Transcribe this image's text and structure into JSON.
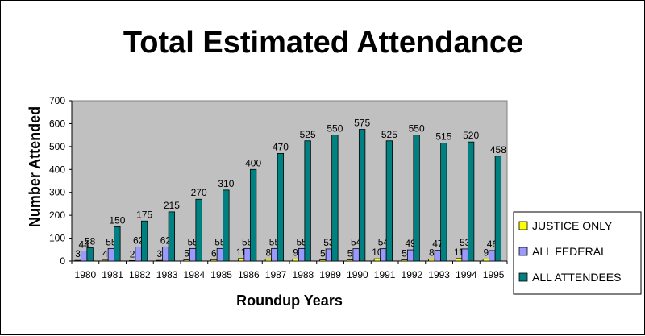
{
  "chart_data": {
    "type": "bar",
    "title": "Total Estimated Attendance",
    "xlabel": "Roundup Years",
    "ylabel": "Number Attended",
    "ylim": [
      0,
      700
    ],
    "yticks": [
      0,
      100,
      200,
      300,
      400,
      500,
      600,
      700
    ],
    "grid": false,
    "legend_position": "right",
    "plot_background": "#c0c0c0",
    "categories": [
      "1980",
      "1981",
      "1982",
      "1983",
      "1984",
      "1985",
      "1986",
      "1987",
      "1988",
      "1989",
      "1990",
      "1991",
      "1992",
      "1993",
      "1994",
      "1995"
    ],
    "series": [
      {
        "name": "JUSTICE ONLY",
        "color": "#ffff00",
        "values": [
          3,
          4,
          2,
          3,
          5,
          6,
          11,
          8,
          9,
          5,
          5,
          10,
          5,
          8,
          11,
          9
        ]
      },
      {
        "name": "ALL FEDERAL",
        "color": "#9999ff",
        "values": [
          44,
          55,
          62,
          62,
          55,
          55,
          55,
          55,
          55,
          53,
          54,
          54,
          49,
          47,
          53,
          46
        ]
      },
      {
        "name": "ALL ATTENDEES",
        "color": "#008080",
        "values": [
          58,
          150,
          175,
          215,
          270,
          310,
          400,
          470,
          525,
          550,
          575,
          525,
          550,
          515,
          520,
          458
        ]
      }
    ]
  }
}
